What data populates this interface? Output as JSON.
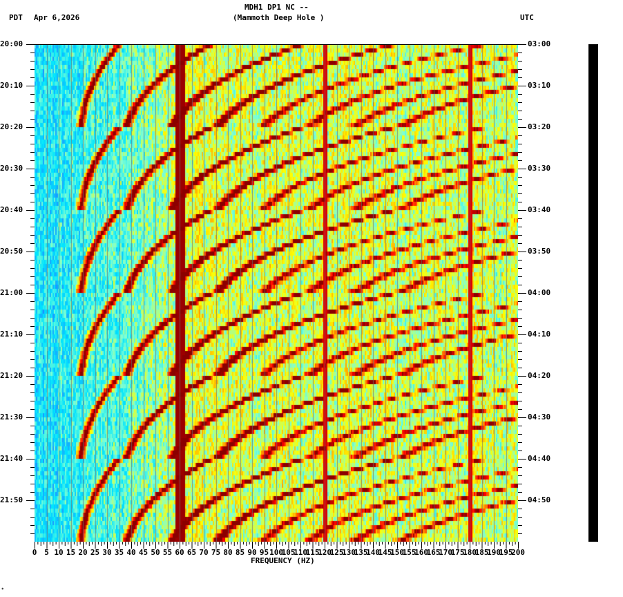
{
  "header": {
    "station": "MDH1 DP1 NC --",
    "site": "(Mammoth Deep Hole )",
    "left_tz": "PDT",
    "date": "Apr 6,2026",
    "right_tz": "UTC"
  },
  "footer": {
    "mark": "*"
  },
  "chart_data": {
    "type": "heatmap",
    "title": "MDH1 DP1 NC -- (Mammoth Deep Hole )",
    "subtitle": "Apr 6,2026",
    "xlabel": "FREQUENCY (HZ)",
    "ylabel_left": "PDT",
    "ylabel_right": "UTC",
    "xlim": [
      0,
      200
    ],
    "x_ticks": [
      0,
      5,
      10,
      15,
      20,
      25,
      30,
      35,
      40,
      45,
      50,
      55,
      60,
      65,
      70,
      75,
      80,
      85,
      90,
      95,
      100,
      105,
      110,
      115,
      120,
      125,
      130,
      135,
      140,
      145,
      150,
      155,
      160,
      165,
      170,
      175,
      180,
      185,
      190,
      195,
      200
    ],
    "y_ticks_left": [
      "20:00",
      "20:10",
      "20:20",
      "20:30",
      "20:40",
      "20:50",
      "21:00",
      "21:10",
      "21:20",
      "21:30",
      "21:40",
      "21:50"
    ],
    "y_ticks_right": [
      "03:00",
      "03:10",
      "03:20",
      "03:30",
      "03:40",
      "03:50",
      "04:00",
      "04:10",
      "04:20",
      "04:30",
      "04:40",
      "04:50"
    ],
    "y_range_minutes": [
      0,
      120
    ],
    "colormap": [
      "#0000ff",
      "#1e90ff",
      "#00e5ff",
      "#7fffd4",
      "#ffff00",
      "#ff8c00",
      "#ff0000",
      "#8b0000"
    ],
    "persistent_lines_hz": [
      60,
      120,
      180
    ],
    "sweep_segments_start_min": [
      0,
      20,
      40,
      60,
      80,
      100
    ],
    "sweep_segment_length_min": 20,
    "sweep_low_start_hz": 22,
    "sweep_harmonics": 8,
    "annotations": "Repeating descending frequency glides (~20 min period) with harmonics; strong 60 Hz line"
  }
}
